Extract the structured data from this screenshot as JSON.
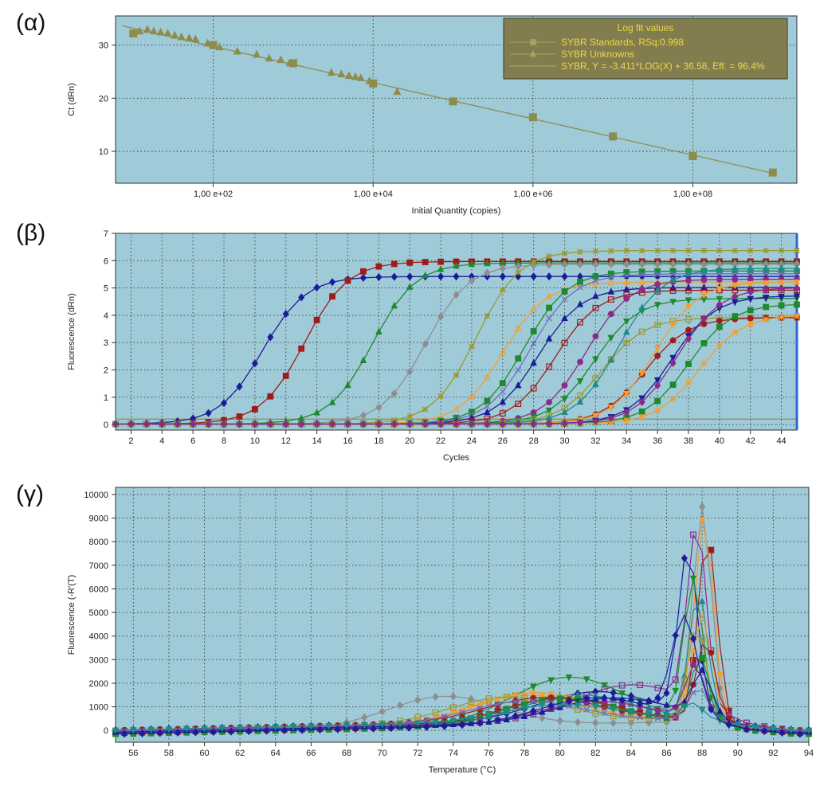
{
  "panels": [
    {
      "label": "(α)"
    },
    {
      "label": "(β)"
    },
    {
      "label": "(γ)"
    }
  ],
  "chart_data": [
    {
      "type": "scatter",
      "xlabel": "Initial Quantity (copies)",
      "ylabel": "Ct (dRn)",
      "xscale": "log",
      "xlim": [
        6,
        2000000000
      ],
      "ylim": [
        4,
        35.5
      ],
      "xticks": [
        100,
        10000,
        1000000,
        100000000
      ],
      "xtick_labels": [
        "1,00 e+02",
        "1,00 e+04",
        "1,00 e+06",
        "1,00 e+08"
      ],
      "yticks": [
        10,
        20,
        30
      ],
      "grid": true,
      "background": "#9fcad8",
      "legend": {
        "placement": "top-right",
        "title": "Log fit values",
        "entries": [
          "SYBR Standards, RSq:0.998",
          "SYBR Unknowns",
          "SYBR, Y = -3.411*LOG(X) + 36.58, Eff. = 96.4%"
        ]
      },
      "fit": {
        "slope": -3.411,
        "intercept": 36.58,
        "color": "#8e8c4c"
      },
      "series": [
        {
          "name": "SYBR Standards",
          "marker": "square",
          "color": "#8e8c4c",
          "x": [
            10,
            100,
            1000,
            10000,
            100000,
            1000000,
            10000000,
            100000000,
            1000000000
          ],
          "y": [
            32.2,
            30.0,
            26.6,
            22.8,
            19.4,
            16.4,
            12.8,
            9.1,
            6.0
          ]
        },
        {
          "name": "SYBR Unknowns",
          "marker": "triangle",
          "color": "#8e8c4c",
          "x": [
            12,
            15,
            18,
            22,
            27,
            33,
            40,
            50,
            60,
            85,
            120,
            200,
            350,
            500,
            700,
            900,
            3000,
            4000,
            5000,
            6000,
            7000,
            9000,
            20000
          ],
          "y": [
            32.6,
            32.9,
            32.6,
            32.4,
            32.2,
            31.8,
            31.5,
            31.3,
            31.1,
            30.3,
            29.6,
            28.8,
            28.2,
            27.5,
            27.2,
            26.6,
            24.8,
            24.5,
            24.2,
            24.0,
            23.8,
            23.2,
            21.2
          ]
        }
      ]
    },
    {
      "type": "line",
      "xlabel": "Cycles",
      "ylabel": "Fluorescence (dRn)",
      "xlim": [
        1,
        45
      ],
      "ylim": [
        -0.2,
        7
      ],
      "xticks": [
        2,
        4,
        6,
        8,
        10,
        12,
        14,
        16,
        18,
        20,
        22,
        24,
        26,
        28,
        30,
        32,
        34,
        36,
        38,
        40,
        42,
        44
      ],
      "yticks": [
        0,
        1,
        2,
        3,
        4,
        5,
        6,
        7
      ],
      "grid": true,
      "background": "#9fcad8",
      "threshold": 0.2,
      "curves": [
        {
          "color": "#1c1c9a",
          "marker": "diamond",
          "midpoint": 10.5,
          "plateau": 5.4
        },
        {
          "color": "#a01c1c",
          "marker": "square",
          "midpoint": 13.2,
          "plateau": 5.95
        },
        {
          "color": "#1e8a2e",
          "marker": "triangle",
          "midpoint": 17.6,
          "plateau": 5.9
        },
        {
          "color": "#8e8e8e",
          "marker": "diamond",
          "midpoint": 21.0,
          "plateau": 5.85
        },
        {
          "color": "#9a9a30",
          "marker": "star",
          "midpoint": 24.3,
          "plateau": 6.35
        },
        {
          "color": "#f0a030",
          "marker": "triangle-open",
          "midpoint": 26.0,
          "plateau": 5.2
        },
        {
          "color": "#1e8a2e",
          "marker": "square",
          "midpoint": 27.4,
          "plateau": 5.6
        },
        {
          "color": "#7070c0",
          "marker": "x",
          "midpoint": 27.8,
          "plateau": 5.5
        },
        {
          "color": "#1c1c9a",
          "marker": "triangle",
          "midpoint": 28.3,
          "plateau": 5.0
        },
        {
          "color": "#a01c1c",
          "marker": "square-open",
          "midpoint": 29.4,
          "plateau": 4.9
        },
        {
          "color": "#8a2a8a",
          "marker": "circle",
          "midpoint": 31.4,
          "plateau": 5.3
        },
        {
          "color": "#1e8a2e",
          "marker": "triangle-down",
          "midpoint": 31.9,
          "plateau": 4.6
        },
        {
          "color": "#9a9a30",
          "marker": "square-open",
          "midpoint": 32.4,
          "plateau": 3.9
        },
        {
          "color": "#208a8a",
          "marker": "triangle",
          "midpoint": 33.5,
          "plateau": 5.7
        },
        {
          "color": "#a01c1c",
          "marker": "circle",
          "midpoint": 35.2,
          "plateau": 3.9
        },
        {
          "color": "#f0a030",
          "marker": "triangle-down",
          "midpoint": 35.8,
          "plateau": 5.2
        },
        {
          "color": "#1c1c9a",
          "marker": "triangle-down",
          "midpoint": 36.9,
          "plateau": 4.7
        },
        {
          "color": "#1e8a2e",
          "marker": "square",
          "midpoint": 38.0,
          "plateau": 4.4
        },
        {
          "color": "#f0a030",
          "marker": "star",
          "midpoint": 38.7,
          "plateau": 4.0
        },
        {
          "color": "#8a2a8a",
          "marker": "diamond",
          "midpoint": 37.3,
          "plateau": 5.0
        }
      ]
    },
    {
      "type": "line",
      "xlabel": "Temperature (°C)",
      "ylabel": "Fluorescence (-R'(T)",
      "xlim": [
        55,
        94
      ],
      "ylim": [
        -500,
        10300
      ],
      "xticks": [
        56,
        58,
        60,
        62,
        64,
        66,
        68,
        70,
        72,
        74,
        76,
        78,
        80,
        82,
        84,
        86,
        88,
        90,
        92,
        94
      ],
      "yticks": [
        0,
        1000,
        2000,
        3000,
        4000,
        5000,
        6000,
        7000,
        8000,
        9000,
        10000
      ],
      "grid": true,
      "background": "#9fcad8",
      "curves": [
        {
          "color": "#8e8e8e",
          "marker": "diamond",
          "peak": 10000,
          "peak_at": 88.0,
          "shoulder": 1300,
          "shoulder_at": 73.5
        },
        {
          "color": "#a01c1c",
          "marker": "square",
          "peak": 8700,
          "peak_at": 88.3,
          "shoulder": 1100,
          "shoulder_at": 80
        },
        {
          "color": "#f0a030",
          "marker": "triangle-down",
          "peak": 9500,
          "peak_at": 88.1,
          "shoulder": 1200,
          "shoulder_at": 78
        },
        {
          "color": "#8a2a8a",
          "marker": "square-open",
          "peak": 8400,
          "peak_at": 87.7,
          "shoulder": 1500,
          "shoulder_at": 84
        },
        {
          "color": "#1c1c9a",
          "marker": "diamond",
          "peak": 7800,
          "peak_at": 87.2,
          "shoulder": 1200,
          "shoulder_at": 82
        },
        {
          "color": "#1e8a2e",
          "marker": "triangle-down",
          "peak": 6800,
          "peak_at": 87.5,
          "shoulder": 2000,
          "shoulder_at": 80.5
        },
        {
          "color": "#208a8a",
          "marker": "triangle",
          "peak": 6200,
          "peak_at": 87.8,
          "shoulder": 1200,
          "shoulder_at": 81
        },
        {
          "color": "#f0a030",
          "marker": "star",
          "peak": 5400,
          "peak_at": 88.0,
          "shoulder": 1300,
          "shoulder_at": 78.5
        },
        {
          "color": "#9a9a30",
          "marker": "square-open",
          "peak": 4800,
          "peak_at": 87.7,
          "shoulder": 1100,
          "shoulder_at": 77
        },
        {
          "color": "#a01c1c",
          "marker": "circle",
          "peak": 4200,
          "peak_at": 88.2,
          "shoulder": 1000,
          "shoulder_at": 79
        },
        {
          "color": "#1e8a2e",
          "marker": "square",
          "peak": 3600,
          "peak_at": 87.9,
          "shoulder": 1100,
          "shoulder_at": 80
        },
        {
          "color": "#8a2a8a",
          "marker": "circle",
          "peak": 3100,
          "peak_at": 87.6,
          "shoulder": 900,
          "shoulder_at": 82
        },
        {
          "color": "#1c1c9a",
          "marker": "triangle",
          "peak": 2700,
          "peak_at": 88.0,
          "shoulder": 1000,
          "shoulder_at": 83
        },
        {
          "color": "#7070c0",
          "marker": "x",
          "peak": 2200,
          "peak_at": 87.8,
          "shoulder": 900,
          "shoulder_at": 78
        },
        {
          "color": "#208a8a",
          "marker": "triangle-down",
          "peak": 1500,
          "peak_at": 87.4,
          "shoulder": 700,
          "shoulder_at": 80
        },
        {
          "color": "#1c1c9a",
          "marker": "diamond",
          "peak": 5100,
          "peak_at": 87.0,
          "shoulder": 1100,
          "shoulder_at": 82,
          "wide": true
        }
      ]
    }
  ]
}
